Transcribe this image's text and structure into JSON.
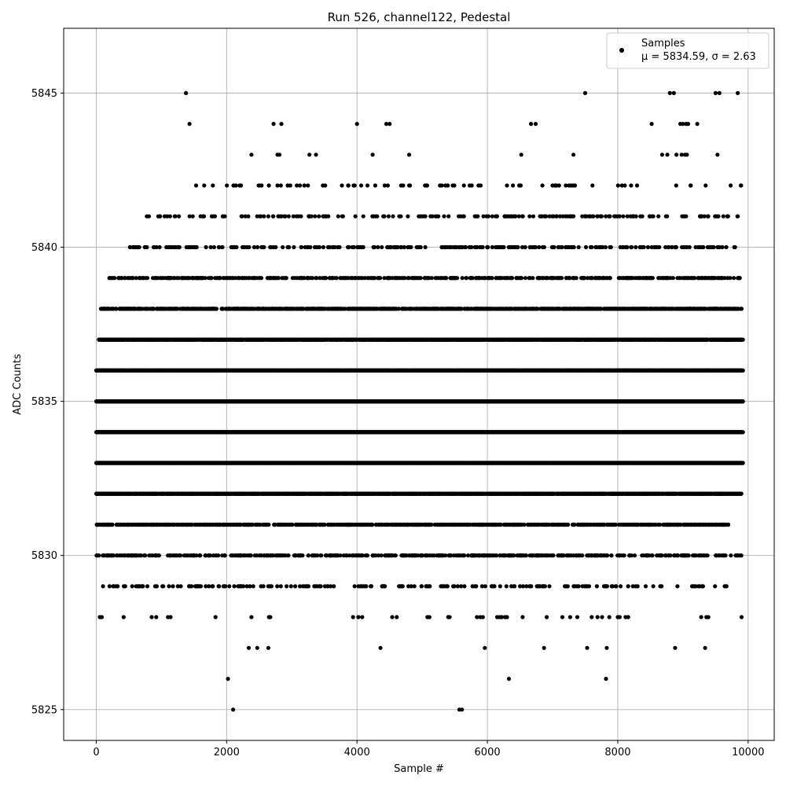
{
  "chart_data": {
    "type": "scatter",
    "title": "Run 526, channel122, Pedestal",
    "xlabel": "Sample #",
    "ylabel": "ADC Counts",
    "xlim": [
      -500,
      10400
    ],
    "ylim": [
      5824.0,
      5847.1
    ],
    "xticks": [
      0,
      2000,
      4000,
      6000,
      8000,
      10000
    ],
    "yticks": [
      5825,
      5830,
      5835,
      5840,
      5845
    ],
    "grid": true,
    "legend_placement": "top-right",
    "marker_color": "#000000",
    "series": [
      {
        "name": "Samples",
        "stats_label": "μ = 5834.59, σ = 2.63",
        "mean": 5834.59,
        "sigma": 2.63,
        "n_samples": 10000,
        "levels": [
          5825,
          5826,
          5827,
          5828,
          5829,
          5830,
          5831,
          5832,
          5833,
          5834,
          5835,
          5836,
          5837,
          5838,
          5839,
          5840,
          5841,
          5842,
          5843,
          5844,
          5845
        ],
        "points": [
          [
            1376,
            5845
          ],
          [
            7500,
            5845
          ],
          [
            8800,
            5845
          ],
          [
            8860,
            5845
          ],
          [
            9500,
            5845
          ],
          [
            9560,
            5845
          ],
          [
            9840,
            5845
          ],
          [
            1430,
            5844
          ],
          [
            2720,
            5844
          ],
          [
            2840,
            5844
          ],
          [
            4000,
            5844
          ],
          [
            4450,
            5844
          ],
          [
            4500,
            5844
          ],
          [
            6670,
            5844
          ],
          [
            6740,
            5844
          ],
          [
            8520,
            5844
          ],
          [
            8960,
            5844
          ],
          [
            9000,
            5844
          ],
          [
            9050,
            5844
          ],
          [
            9080,
            5844
          ],
          [
            9220,
            5844
          ],
          [
            2380,
            5843
          ],
          [
            2780,
            5843
          ],
          [
            2810,
            5843
          ],
          [
            3270,
            5843
          ],
          [
            3370,
            5843
          ],
          [
            4240,
            5843
          ],
          [
            4800,
            5843
          ],
          [
            6520,
            5843
          ],
          [
            7320,
            5843
          ],
          [
            8680,
            5843
          ],
          [
            8760,
            5843
          ],
          [
            8900,
            5843
          ],
          [
            8980,
            5843
          ],
          [
            9030,
            5843
          ],
          [
            9060,
            5843
          ],
          [
            9530,
            5843
          ],
          [
            2021,
            5826
          ],
          [
            6330,
            5826
          ],
          [
            7820,
            5826
          ],
          [
            2100,
            5825
          ],
          [
            5570,
            5825
          ],
          [
            5610,
            5825
          ],
          [
            2340,
            5827
          ],
          [
            2470,
            5827
          ],
          [
            2640,
            5827
          ],
          [
            4360,
            5827
          ],
          [
            5960,
            5827
          ],
          [
            6870,
            5827
          ],
          [
            7530,
            5827
          ],
          [
            7830,
            5827
          ],
          [
            8880,
            5827
          ],
          [
            9340,
            5827
          ],
          [
            55,
            5828
          ],
          [
            85,
            5828
          ],
          [
            420,
            5828
          ],
          [
            850,
            5828
          ],
          [
            920,
            5828
          ],
          [
            1100,
            5828
          ],
          [
            1140,
            5828
          ],
          [
            1830,
            5828
          ],
          [
            2380,
            5828
          ],
          [
            2650,
            5828
          ],
          [
            2670,
            5828
          ],
          [
            3940,
            5828
          ],
          [
            4020,
            5828
          ],
          [
            4080,
            5828
          ],
          [
            4540,
            5828
          ],
          [
            4610,
            5828
          ],
          [
            5080,
            5828
          ],
          [
            5110,
            5828
          ],
          [
            5400,
            5828
          ],
          [
            5420,
            5828
          ],
          [
            5840,
            5828
          ],
          [
            5890,
            5828
          ],
          [
            5930,
            5828
          ],
          [
            6150,
            5828
          ],
          [
            6190,
            5828
          ],
          [
            6220,
            5828
          ],
          [
            6270,
            5828
          ],
          [
            6300,
            5828
          ],
          [
            6540,
            5828
          ],
          [
            6910,
            5828
          ],
          [
            7150,
            5828
          ],
          [
            7270,
            5828
          ],
          [
            7380,
            5828
          ],
          [
            7600,
            5828
          ],
          [
            7690,
            5828
          ],
          [
            7760,
            5828
          ],
          [
            7870,
            5828
          ],
          [
            8000,
            5828
          ],
          [
            8030,
            5828
          ],
          [
            8120,
            5828
          ],
          [
            8160,
            5828
          ],
          [
            9280,
            5828
          ],
          [
            9360,
            5828
          ],
          [
            9390,
            5828
          ],
          [
            9900,
            5828
          ]
        ],
        "bands": [
          {
            "y": 5829,
            "start": 80,
            "end": 9700,
            "density": 0.022,
            "seed": 11
          },
          {
            "y": 5830,
            "start": 0,
            "end": 9900,
            "density": 0.05,
            "seed": 12
          },
          {
            "y": 5831,
            "start": 0,
            "end": 9700,
            "density": 0.08,
            "seed": 13
          },
          {
            "y": 5832,
            "start": 0,
            "end": 9900,
            "density": 0.18,
            "seed": 14
          },
          {
            "y": 5833,
            "start": 0,
            "end": 9920,
            "density": 0.3,
            "seed": 15
          },
          {
            "y": 5834,
            "start": 0,
            "end": 9920,
            "density": 0.34,
            "seed": 16
          },
          {
            "y": 5835,
            "start": 0,
            "end": 9920,
            "density": 0.3,
            "seed": 17
          },
          {
            "y": 5836,
            "start": 0,
            "end": 9920,
            "density": 0.24,
            "seed": 18
          },
          {
            "y": 5837,
            "start": 40,
            "end": 9920,
            "density": 0.16,
            "seed": 19
          },
          {
            "y": 5838,
            "start": 60,
            "end": 9920,
            "density": 0.09,
            "seed": 20
          },
          {
            "y": 5839,
            "start": 160,
            "end": 9880,
            "density": 0.05,
            "seed": 21
          },
          {
            "y": 5840,
            "start": 480,
            "end": 9830,
            "density": 0.028,
            "seed": 22
          },
          {
            "y": 5841,
            "start": 740,
            "end": 9880,
            "density": 0.016,
            "seed": 23
          },
          {
            "y": 5842,
            "start": 1200,
            "end": 9900,
            "density": 0.008,
            "seed": 24
          }
        ]
      }
    ]
  }
}
